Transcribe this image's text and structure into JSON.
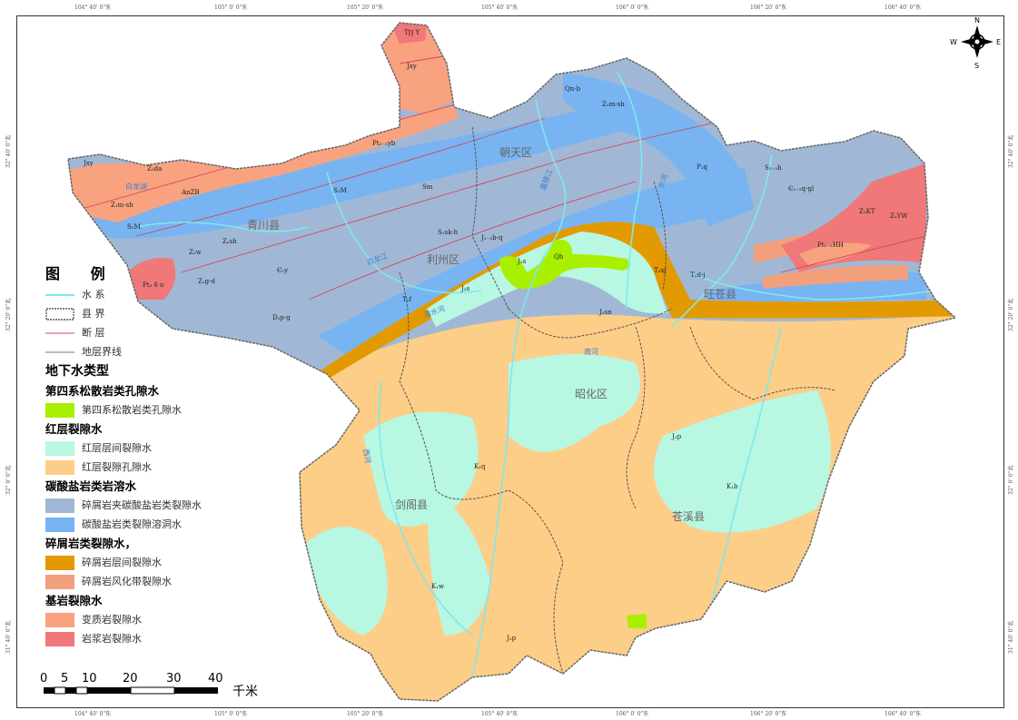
{
  "graticule": {
    "longitudes": [
      "104° 40' 0\"东",
      "105° 0' 0\"东",
      "105° 20' 0\"东",
      "105° 40' 0\"东",
      "106° 0' 0\"东",
      "106° 20' 0\"东",
      "106° 40' 0\"东"
    ],
    "latitudes": [
      "32° 40' 0\"北",
      "32° 20' 0\"北",
      "32° 0' 0\"北",
      "31° 40' 0\"北"
    ]
  },
  "compass": {
    "n": "N",
    "s": "S",
    "e": "E",
    "w": "W"
  },
  "counties": [
    "青川县",
    "朝天区",
    "利州区",
    "旺苍县",
    "昭化区",
    "剑阁县",
    "苍溪县"
  ],
  "rivers": [
    "嘉陵江",
    "白龙江",
    "清水河",
    "东河",
    "南河",
    "西河",
    "白龙湖"
  ],
  "units": [
    "Jxy",
    "T∏ Y",
    "Pt₁₋₂yb",
    "Z₂da",
    "AnZB",
    "Z₁m-sh",
    "S₂M",
    "S₁M",
    "Z₂w",
    "Zₐsh",
    "Sm",
    "Є₁y",
    "Z₂g-d",
    "Pt₃ δ o",
    "D₂p-g",
    "Qn-b",
    "Z₁m-sh",
    "Sm",
    "S₁sk-h",
    "J₁₋₂b-q",
    "J₂s",
    "Qh",
    "T₃xj",
    "T₁f",
    "J₂sn",
    "J₃s",
    "P₁q",
    "S₂₋₃h",
    "Є₁₋₂q-gl",
    "Z₁KT",
    "Z₁YW",
    "Pt₁₋₂HH",
    "T₁d-j",
    "J₃p",
    "K₁q",
    "K₁b",
    "K₁w",
    "J₃p"
  ],
  "legend": {
    "title": "图  例",
    "lines": [
      {
        "label": "水   系",
        "color": "#7ee8f0"
      },
      {
        "label": "县   界",
        "color": "#555555"
      },
      {
        "label": "断   层",
        "color": "#d04a5a"
      },
      {
        "label": "地层界线",
        "color": "#777777"
      }
    ],
    "section_title": "地下水类型",
    "groups": [
      {
        "title": "第四系松散岩类孔隙水",
        "items": [
          {
            "label": "第四系松散岩类孔隙水",
            "color": "#a8f000"
          }
        ]
      },
      {
        "title": "红层裂隙水",
        "items": [
          {
            "label": "红层层间裂隙水",
            "color": "#b8f7e2"
          },
          {
            "label": "红层裂隙孔隙水",
            "color": "#fdce87"
          }
        ]
      },
      {
        "title": "碳酸盐岩类岩溶水",
        "items": [
          {
            "label": "碎屑岩夹碳酸盐岩类裂隙水",
            "color": "#a0b8d6"
          },
          {
            "label": "碳酸盐岩类裂隙溶洞水",
            "color": "#78b4f2"
          }
        ]
      },
      {
        "title": "碎屑岩类裂隙水，",
        "items": [
          {
            "label": "碎屑岩层间裂隙水",
            "color": "#e39a00"
          },
          {
            "label": "碎屑岩风化带裂隙水",
            "color": "#f2a07c"
          }
        ]
      },
      {
        "title": "基岩裂隙水",
        "items": [
          {
            "label": "变质岩裂隙水",
            "color": "#f9a27f"
          },
          {
            "label": "岩浆岩裂隙水",
            "color": "#f07878"
          }
        ]
      }
    ]
  },
  "scale": {
    "ticks": [
      "0",
      "5",
      "10",
      "20",
      "30",
      "40"
    ],
    "unit": "千米"
  }
}
